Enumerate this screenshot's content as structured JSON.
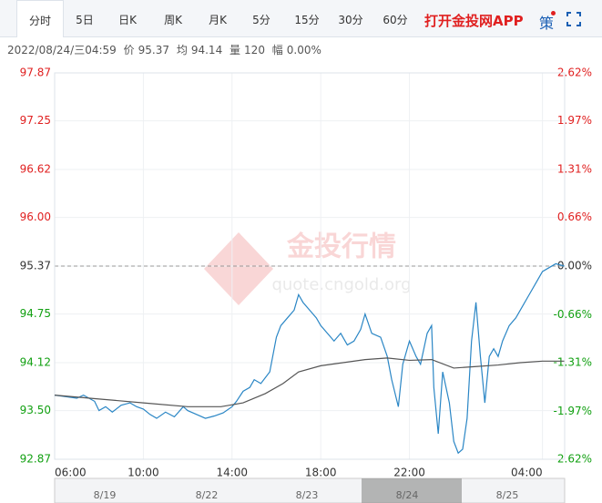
{
  "tabs": [
    "分时",
    "5日",
    "日K",
    "周K",
    "月K",
    "5分",
    "15分",
    "30分",
    "60分"
  ],
  "app_link": "打开金投网APP",
  "strategy": "策",
  "info": {
    "datetime": "2022/08/24/三04:59",
    "price_label": "价",
    "price": "95.37",
    "avg_label": "均",
    "avg": "94.14",
    "vol_label": "量",
    "vol": "120",
    "amp_label": "幅",
    "amp": "0.00%"
  },
  "watermark": {
    "title": "金投行情",
    "url": "quote.cngold.org"
  },
  "navigator": {
    "dates": [
      "8/19",
      "8/22",
      "8/23",
      "8/24",
      "8/25"
    ]
  },
  "chart_data": {
    "type": "line",
    "xlim": [
      0,
      23
    ],
    "xticks": [
      {
        "value": 0,
        "label": "06:00"
      },
      {
        "value": 4,
        "label": "10:00"
      },
      {
        "value": 8,
        "label": "14:00"
      },
      {
        "value": 12,
        "label": "18:00"
      },
      {
        "value": 16,
        "label": "22:00"
      },
      {
        "value": 22,
        "label": "04:00"
      }
    ],
    "ylim": [
      92.87,
      97.87
    ],
    "yticks": [
      92.87,
      {
        "value": 93.5,
        "label": "93.50"
      },
      94.12,
      94.75,
      95.37,
      {
        "value": 96,
        "label": "96.00"
      },
      96.62,
      97.25,
      97.87
    ],
    "y2lim": [
      -2.62,
      2.62
    ],
    "y2ticks": [
      {
        "value": -2.62,
        "label": "-2.62%"
      },
      {
        "value": -1.97,
        "label": "-1.97%"
      },
      {
        "value": -1.31,
        "label": "-1.31%"
      },
      {
        "value": -0.66,
        "label": "-0.66%"
      },
      {
        "value": 0,
        "label": "0.00%"
      },
      {
        "value": 0.66,
        "label": "0.66%"
      },
      {
        "value": 1.31,
        "label": "1.31%"
      },
      {
        "value": 1.97,
        "label": "1.97%"
      },
      {
        "value": 2.62,
        "label": "2.62%"
      }
    ],
    "series": [
      {
        "color": "#2a86c5",
        "x": [
          0,
          0.5,
          1,
          1.3,
          1.8,
          2,
          2.3,
          2.6,
          3,
          3.4,
          3.7,
          4,
          4.3,
          4.6,
          5,
          5.4,
          5.8,
          6,
          6.4,
          6.8,
          7.2,
          7.6,
          8,
          8.2,
          8.5,
          8.8,
          9,
          9.3,
          9.7,
          10,
          10.2,
          10.5,
          10.8,
          11,
          11.2,
          11.5,
          11.8,
          12,
          12.3,
          12.6,
          12.9,
          13.2,
          13.5,
          13.8,
          14,
          14.3,
          14.7,
          15,
          15.2,
          15.5,
          15.7,
          16,
          16.3,
          16.5,
          16.8,
          17,
          17.1,
          17.3,
          17.5,
          17.8,
          18,
          18.2,
          18.4,
          18.6,
          18.8,
          19,
          19.2,
          19.4,
          19.6,
          19.8,
          20,
          20.2,
          20.5,
          20.8,
          21.1,
          21.4,
          21.7,
          22,
          22.3,
          22.6,
          22.98
        ],
        "values": [
          93.7,
          93.68,
          93.66,
          93.7,
          93.62,
          93.5,
          93.55,
          93.48,
          93.57,
          93.6,
          93.55,
          93.52,
          93.45,
          93.4,
          93.48,
          93.42,
          93.55,
          93.5,
          93.45,
          93.4,
          93.43,
          93.47,
          93.55,
          93.62,
          93.75,
          93.8,
          93.9,
          93.85,
          94.0,
          94.45,
          94.6,
          94.7,
          94.8,
          95.0,
          94.9,
          94.8,
          94.7,
          94.6,
          94.5,
          94.4,
          94.5,
          94.35,
          94.4,
          94.55,
          94.75,
          94.5,
          94.45,
          94.2,
          93.9,
          93.55,
          94.1,
          94.4,
          94.2,
          94.1,
          94.5,
          94.6,
          93.8,
          93.2,
          94.0,
          93.6,
          93.1,
          92.95,
          93.0,
          93.4,
          94.4,
          94.9,
          94.2,
          93.6,
          94.2,
          94.3,
          94.2,
          94.4,
          94.6,
          94.7,
          94.85,
          95.0,
          95.15,
          95.3,
          95.35,
          95.4,
          95.37
        ]
      },
      {
        "color": "#555555",
        "x": [
          0,
          2,
          4,
          6,
          7.5,
          8.5,
          9.5,
          10.3,
          11,
          12,
          13,
          14,
          15,
          16,
          17,
          18,
          19,
          20,
          21,
          22,
          22.98
        ],
        "values": [
          93.7,
          93.65,
          93.6,
          93.55,
          93.55,
          93.6,
          93.72,
          93.85,
          94.0,
          94.08,
          94.12,
          94.16,
          94.18,
          94.15,
          94.16,
          94.05,
          94.07,
          94.09,
          94.12,
          94.14,
          94.14
        ]
      }
    ]
  }
}
